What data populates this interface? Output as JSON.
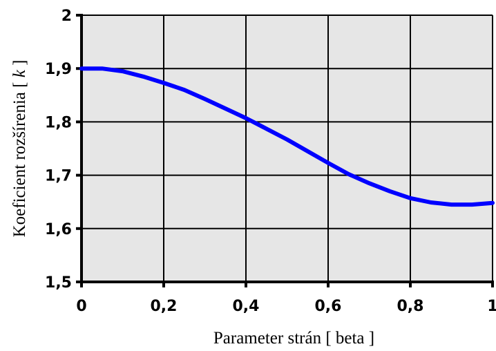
{
  "chart_data": {
    "type": "line",
    "title": "",
    "xlabel": "Parameter strán [ beta ]",
    "ylabel_text": "Koeficient rozšírenia [ ",
    "ylabel_var": "k",
    "ylabel_end": " ]",
    "xlim": [
      0,
      1
    ],
    "ylim": [
      1.5,
      2
    ],
    "x_ticks": [
      0,
      0.2,
      0.4,
      0.6,
      0.8,
      1
    ],
    "y_ticks": [
      1.5,
      1.6,
      1.7,
      1.8,
      1.9,
      2
    ],
    "x_tick_labels": [
      "0",
      "0,2",
      "0,4",
      "0,6",
      "0,8",
      "1"
    ],
    "y_tick_labels": [
      "1,5",
      "1,6",
      "1,7",
      "1,8",
      "1,9",
      "2"
    ],
    "grid": true,
    "colors": {
      "plot_bg": "#e6e6e6",
      "line": "#0000ff",
      "grid": "#000000"
    },
    "series": [
      {
        "x": [
          0,
          0.05,
          0.1,
          0.15,
          0.2,
          0.25,
          0.3,
          0.35,
          0.4,
          0.45,
          0.5,
          0.55,
          0.6,
          0.65,
          0.7,
          0.75,
          0.8,
          0.85,
          0.9,
          0.95,
          1.0
        ],
        "y": [
          1.9,
          1.9,
          1.895,
          1.885,
          1.873,
          1.86,
          1.843,
          1.825,
          1.807,
          1.787,
          1.767,
          1.745,
          1.723,
          1.702,
          1.685,
          1.67,
          1.657,
          1.649,
          1.645,
          1.645,
          1.648
        ]
      }
    ]
  }
}
